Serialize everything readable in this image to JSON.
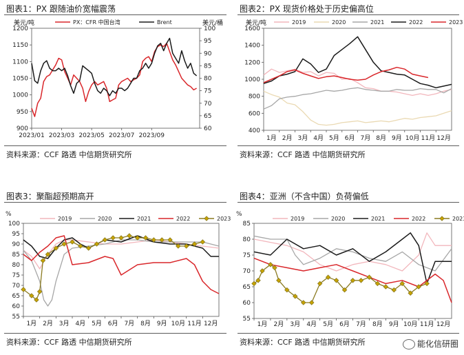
{
  "panels": [
    {
      "title": "图表1：PX 跟随油价宽幅震荡",
      "source": "资料来源：CCF 路透 中信期货研究所"
    },
    {
      "title": "图表2：PX 现货价格处于历史偏高位",
      "source": "资料来源：CCF 路透 中信期货研究所"
    },
    {
      "title": "图表3：聚酯超预期高开",
      "source": "资料来源：CCF 路透 中信期货研究所"
    },
    {
      "title": "图表4：亚洲（不含中国）负荷偏低",
      "source": "资料来源：CCF 路透 中信期货研究所"
    }
  ],
  "watermark": "能化信研圈",
  "colors": {
    "red": "#d9262a",
    "black": "#1a1a1a",
    "gray": "#a6a6a6",
    "pink": "#f2b6bc",
    "tan": "#ead9b2",
    "gold": "#c8a400",
    "gold_line": "#8a7a20"
  },
  "chart_data": [
    {
      "type": "line",
      "title": "PX 跟随油价宽幅震荡",
      "y_left_label": "美元/吨",
      "y_right_label": "美元/桶",
      "ylim_left": [
        900,
        1200
      ],
      "ylim_right": [
        60,
        100
      ],
      "yticks_left": [
        900,
        950,
        1000,
        1050,
        1100,
        1150,
        1200
      ],
      "yticks_right": [
        60,
        65,
        70,
        75,
        80,
        85,
        90,
        95,
        100
      ],
      "x_tick_labels": [
        "2023/01",
        "2023/03",
        "2023/05",
        "2023/07",
        "2023/09"
      ],
      "x_tick_positions": [
        0,
        2,
        4,
        6,
        8
      ],
      "x_range": [
        0,
        11.2
      ],
      "series": [
        {
          "name": "PX：CFR 中国台湾",
          "axis": "left",
          "color": "red",
          "x": [
            0,
            0.2,
            0.4,
            0.6,
            0.8,
            1.0,
            1.2,
            1.4,
            1.6,
            1.8,
            2.0,
            2.2,
            2.4,
            2.6,
            2.8,
            3.0,
            3.2,
            3.4,
            3.6,
            3.8,
            4.0,
            4.2,
            4.4,
            4.6,
            4.8,
            5.0,
            5.2,
            5.4,
            5.6,
            5.8,
            6.0,
            6.2,
            6.4,
            6.6,
            6.8,
            7.0,
            7.2,
            7.4,
            7.6,
            7.8,
            8.0,
            8.2,
            8.4,
            8.6,
            8.8,
            9.0,
            9.2,
            9.4,
            9.6,
            9.8,
            10.0,
            10.2,
            10.4,
            10.6,
            10.8,
            11.0
          ],
          "values": [
            960,
            935,
            975,
            990,
            1040,
            1055,
            1060,
            1075,
            1090,
            1110,
            1105,
            1070,
            1050,
            1030,
            1060,
            1050,
            1040,
            1020,
            980,
            1010,
            1030,
            1040,
            1030,
            1035,
            1040,
            1020,
            980,
            985,
            990,
            1030,
            1040,
            1045,
            1050,
            1040,
            1045,
            1050,
            1060,
            1100,
            1110,
            1115,
            1100,
            1130,
            1145,
            1150,
            1145,
            1155,
            1130,
            1105,
            1090,
            1070,
            1050,
            1040,
            1030,
            1025,
            1015,
            1020
          ]
        },
        {
          "name": "Brent",
          "axis": "right",
          "color": "black",
          "x": [
            0,
            0.2,
            0.4,
            0.6,
            0.8,
            1.0,
            1.2,
            1.4,
            1.6,
            1.8,
            2.0,
            2.2,
            2.4,
            2.6,
            2.8,
            3.0,
            3.2,
            3.4,
            3.6,
            3.8,
            4.0,
            4.2,
            4.4,
            4.6,
            4.8,
            5.0,
            5.2,
            5.4,
            5.6,
            5.8,
            6.0,
            6.2,
            6.4,
            6.6,
            6.8,
            7.0,
            7.2,
            7.4,
            7.6,
            7.8,
            8.0,
            8.2,
            8.4,
            8.6,
            8.8,
            9.0,
            9.2,
            9.4,
            9.6,
            9.8,
            10.0,
            10.2,
            10.4,
            10.6,
            10.8,
            11.0
          ],
          "values": [
            86,
            79,
            78,
            83,
            86,
            87,
            84,
            83,
            83,
            84,
            83,
            84,
            81,
            77,
            74,
            78,
            79,
            85,
            84,
            83,
            82,
            78,
            75,
            74,
            76,
            75,
            73,
            75,
            74,
            76,
            76,
            75,
            76,
            78,
            80,
            80,
            83,
            84,
            86,
            84,
            86,
            90,
            93,
            94,
            91,
            94,
            96,
            90,
            88,
            86,
            91,
            87,
            84,
            86,
            82,
            81
          ]
        }
      ]
    },
    {
      "type": "line",
      "title": "PX 现货价格处于历史偏高位",
      "ylabel": "美元/吨",
      "ylim": [
        400,
        1600
      ],
      "yticks": [
        400,
        600,
        800,
        1000,
        1200,
        1400,
        1600
      ],
      "categories": [
        "1月",
        "2月",
        "3月",
        "4月",
        "5月",
        "6月",
        "7月",
        "8月",
        "9月",
        "10月",
        "11月",
        "12月"
      ],
      "x_range": [
        0,
        12
      ],
      "series": [
        {
          "name": "2019",
          "color": "pink",
          "x": [
            0,
            0.5,
            1,
            1.5,
            2,
            2.5,
            3,
            3.5,
            4,
            4.5,
            5,
            5.5,
            6,
            6.5,
            7,
            7.5,
            8,
            8.5,
            9,
            9.5,
            10,
            10.5,
            11,
            11.5,
            12
          ],
          "values": [
            1050,
            1120,
            1080,
            1100,
            1120,
            1080,
            1090,
            1040,
            1080,
            1070,
            1000,
            1010,
            960,
            900,
            890,
            860,
            860,
            850,
            830,
            810,
            830,
            810,
            830,
            860,
            880
          ]
        },
        {
          "name": "2020",
          "color": "tan",
          "x": [
            0,
            0.5,
            1,
            1.5,
            2,
            2.5,
            3,
            3.5,
            4,
            4.5,
            5,
            5.5,
            6,
            6.5,
            7,
            7.5,
            8,
            8.5,
            9,
            9.5,
            10,
            10.5,
            11,
            11.5,
            12
          ],
          "values": [
            860,
            820,
            790,
            720,
            700,
            620,
            520,
            470,
            460,
            470,
            490,
            500,
            510,
            490,
            500,
            510,
            500,
            520,
            540,
            530,
            550,
            560,
            570,
            600,
            630
          ]
        },
        {
          "name": "2021",
          "color": "gray",
          "x": [
            0,
            0.5,
            1,
            1.5,
            2,
            2.5,
            3,
            3.5,
            4,
            4.5,
            5,
            5.5,
            6,
            6.5,
            7,
            7.5,
            8,
            8.5,
            9,
            9.5,
            10,
            10.5,
            11,
            11.5,
            12
          ],
          "values": [
            650,
            690,
            770,
            790,
            800,
            820,
            830,
            850,
            870,
            860,
            870,
            890,
            900,
            880,
            870,
            860,
            860,
            880,
            870,
            870,
            890,
            880,
            880,
            840,
            890
          ]
        },
        {
          "name": "2022",
          "color": "black",
          "x": [
            0,
            0.5,
            1,
            1.5,
            2,
            2.5,
            3,
            3.5,
            4,
            4.5,
            5,
            5.5,
            6,
            6.5,
            7,
            7.5,
            8,
            8.5,
            9,
            9.5,
            10,
            10.5,
            11,
            11.5,
            12
          ],
          "values": [
            950,
            980,
            1040,
            1060,
            1090,
            1240,
            1180,
            1080,
            1120,
            1280,
            1350,
            1420,
            1500,
            1350,
            1200,
            1100,
            1080,
            1060,
            1050,
            1000,
            950,
            930,
            900,
            920,
            940
          ]
        },
        {
          "name": "2023",
          "color": "red",
          "x": [
            0,
            0.5,
            1,
            1.5,
            2,
            2.5,
            3,
            3.5,
            4,
            4.5,
            5,
            5.5,
            6,
            6.5,
            7,
            7.5,
            8,
            8.5,
            9,
            9.5,
            10,
            10.5
          ],
          "values": [
            960,
            1000,
            1040,
            1090,
            1110,
            1070,
            1040,
            1010,
            1030,
            1040,
            1020,
            1000,
            990,
            1000,
            1050,
            1090,
            1110,
            1140,
            1120,
            1060,
            1040,
            1020
          ]
        }
      ]
    },
    {
      "type": "line",
      "title": "聚酯超预期高开",
      "ylabel": "%",
      "ylim": [
        55,
        100
      ],
      "yticks": [
        55,
        60,
        65,
        70,
        75,
        80,
        85,
        90,
        95,
        100
      ],
      "categories": [
        "1月",
        "2月",
        "3月",
        "4月",
        "5月",
        "6月",
        "7月",
        "8月",
        "9月",
        "10月",
        "11月",
        "12月"
      ],
      "x_range": [
        0,
        12
      ],
      "series": [
        {
          "name": "2019",
          "color": "pink",
          "x": [
            0,
            0.5,
            1,
            1.5,
            2,
            2.5,
            3,
            4,
            5,
            6,
            7,
            8,
            9,
            10,
            11,
            12
          ],
          "values": [
            87,
            84,
            78,
            85,
            90,
            92,
            92,
            91,
            90,
            90,
            91,
            92,
            91,
            90,
            89,
            88
          ]
        },
        {
          "name": "2020",
          "color": "gray",
          "x": [
            0,
            0.5,
            1,
            1.25,
            1.5,
            1.75,
            2,
            2.5,
            3,
            4,
            5,
            6,
            7,
            8,
            9,
            10,
            11,
            12
          ],
          "values": [
            87,
            82,
            72,
            63,
            60,
            63,
            72,
            85,
            88,
            89,
            90,
            92,
            92,
            91,
            91,
            91,
            91,
            89
          ]
        },
        {
          "name": "2021",
          "color": "black",
          "x": [
            0,
            0.5,
            1,
            1.5,
            2,
            2.5,
            3,
            3.5,
            4,
            5,
            6,
            7,
            8,
            9,
            10,
            11,
            11.5,
            12
          ],
          "values": [
            92,
            89,
            84,
            83,
            88,
            92,
            93,
            90,
            88,
            92,
            91,
            94,
            91,
            90,
            90,
            88,
            84,
            84
          ]
        },
        {
          "name": "2022",
          "color": "red",
          "x": [
            0,
            0.5,
            1,
            1.5,
            2,
            2.5,
            3,
            4,
            5,
            5.5,
            6,
            7,
            8,
            9,
            10,
            10.5,
            11,
            11.5,
            12
          ],
          "values": [
            85,
            82,
            86,
            89,
            93,
            94,
            80,
            81,
            84,
            83,
            75,
            80,
            81,
            81,
            83,
            80,
            72,
            68,
            66
          ]
        },
        {
          "name": "2023",
          "color": "gold",
          "marker": "diamond",
          "x": [
            0,
            0.5,
            0.8,
            1.0,
            1.2,
            1.5,
            2.0,
            2.5,
            3.0,
            3.5,
            4.0,
            4.5,
            5.0,
            5.5,
            6.0,
            6.5,
            7.0,
            7.5,
            8.0,
            8.5,
            9.0,
            9.5,
            10.0,
            10.5,
            11.0
          ],
          "values": [
            68,
            65,
            63,
            67,
            82,
            85,
            88,
            90,
            91,
            89,
            88,
            90,
            92,
            93,
            93,
            94,
            93,
            93,
            92,
            92,
            92,
            89,
            89,
            90,
            91
          ]
        }
      ]
    },
    {
      "type": "line",
      "title": "亚洲（不含中国）负荷偏低",
      "ylabel": "%",
      "ylim": [
        55,
        85
      ],
      "yticks": [
        55,
        60,
        65,
        70,
        75,
        80,
        85
      ],
      "categories": [
        "1月",
        "2月",
        "3月",
        "4月",
        "5月",
        "6月",
        "7月",
        "8月",
        "9月",
        "10月",
        "11月",
        "12月"
      ],
      "x_range": [
        0,
        12
      ],
      "series": [
        {
          "name": "2019",
          "color": "pink",
          "x": [
            0,
            1,
            2,
            3,
            4,
            5,
            6,
            7,
            8,
            9,
            10,
            10.5,
            11,
            12
          ],
          "values": [
            80,
            79,
            78,
            76,
            72,
            70,
            72,
            73,
            72,
            70,
            75,
            82,
            78,
            78
          ]
        },
        {
          "name": "2020",
          "color": "gray",
          "x": [
            0,
            1,
            2,
            2.5,
            3,
            4,
            5,
            6,
            7,
            8,
            9,
            10,
            11,
            12
          ],
          "values": [
            81,
            80,
            80,
            75,
            72,
            74,
            77,
            76,
            74,
            73,
            76,
            72,
            70,
            77
          ]
        },
        {
          "name": "2021",
          "color": "black",
          "x": [
            0,
            1,
            2,
            3,
            4,
            5,
            6,
            7,
            8,
            9,
            9.5,
            10,
            10.5,
            11,
            12
          ],
          "values": [
            76,
            75,
            80,
            77,
            78,
            75,
            77,
            73,
            76,
            80,
            82,
            78,
            66,
            73,
            73
          ]
        },
        {
          "name": "2022",
          "color": "red",
          "x": [
            0,
            1,
            2,
            3,
            4,
            5,
            6,
            7,
            8,
            9,
            10,
            11,
            11.5,
            12
          ],
          "values": [
            74,
            72,
            71,
            70,
            71,
            72,
            70,
            68,
            66,
            67,
            65,
            69,
            67,
            60
          ]
        },
        {
          "name": "2023",
          "color": "gold",
          "marker": "diamond",
          "x": [
            0,
            0.25,
            0.5,
            1.0,
            1.25,
            1.5,
            2.0,
            2.5,
            3.0,
            3.5,
            4.0,
            4.5,
            5.0,
            5.5,
            6.0,
            6.5,
            7.0,
            7.5,
            8.0,
            8.5,
            9.0,
            9.5,
            10.0,
            10.5
          ],
          "values": [
            66,
            67,
            70,
            72,
            71,
            67,
            64,
            62,
            60,
            60,
            66,
            68,
            67,
            64,
            67,
            67,
            68,
            66,
            65,
            64,
            66,
            63,
            65,
            66
          ]
        }
      ]
    }
  ]
}
